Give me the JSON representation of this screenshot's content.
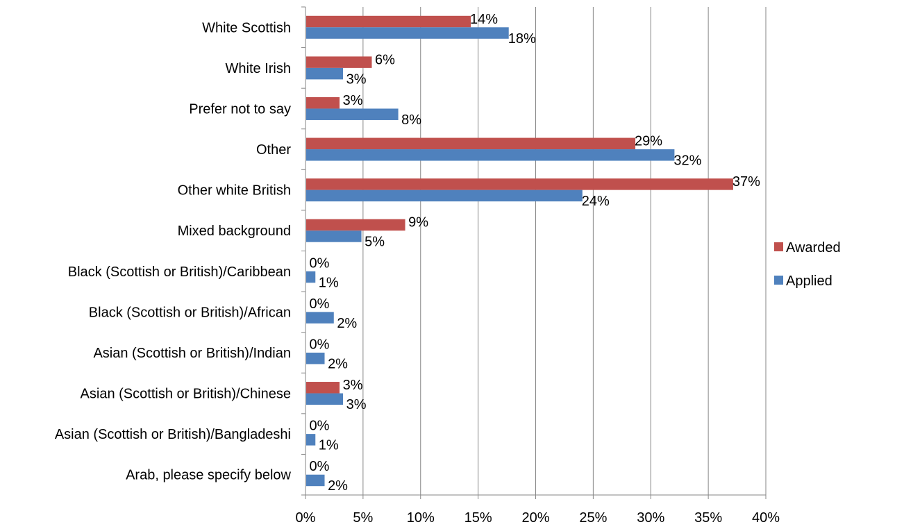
{
  "chart_data": {
    "type": "bar",
    "orientation": "horizontal",
    "categories": [
      "White Scottish",
      "White Irish",
      "Prefer not to say",
      "Other",
      "Other white British",
      "Mixed background",
      "Black (Scottish or British)/Caribbean",
      "Black (Scottish or British)/African",
      "Asian (Scottish or British)/Indian",
      "Asian (Scottish or British)/Chinese",
      "Asian (Scottish or British)/Bangladeshi",
      "Arab, please specify below"
    ],
    "series": [
      {
        "name": "Awarded",
        "color": "#C0504D",
        "values": [
          14.3,
          5.7,
          2.9,
          28.6,
          37.1,
          8.6,
          0,
          0,
          0,
          2.9,
          0,
          0
        ],
        "labels": [
          "14%",
          "6%",
          "3%",
          "29%",
          "37%",
          "9%",
          "0%",
          "0%",
          "0%",
          "3%",
          "0%",
          "0%"
        ]
      },
      {
        "name": "Applied",
        "color": "#4F81BD",
        "values": [
          17.6,
          3.2,
          8.0,
          32.0,
          24.0,
          4.8,
          0.8,
          2.4,
          1.6,
          3.2,
          0.8,
          1.6
        ],
        "labels": [
          "18%",
          "3%",
          "8%",
          "32%",
          "24%",
          "5%",
          "1%",
          "2%",
          "2%",
          "3%",
          "1%",
          "2%"
        ]
      }
    ],
    "xlim": [
      0,
      40
    ],
    "x_ticks": [
      "0%",
      "5%",
      "10%",
      "15%",
      "20%",
      "25%",
      "30%",
      "35%",
      "40%"
    ],
    "grid": "vertical",
    "legend": {
      "position": "right",
      "entries": [
        "Awarded",
        "Applied"
      ]
    },
    "title": "",
    "xlabel": "",
    "ylabel": ""
  }
}
